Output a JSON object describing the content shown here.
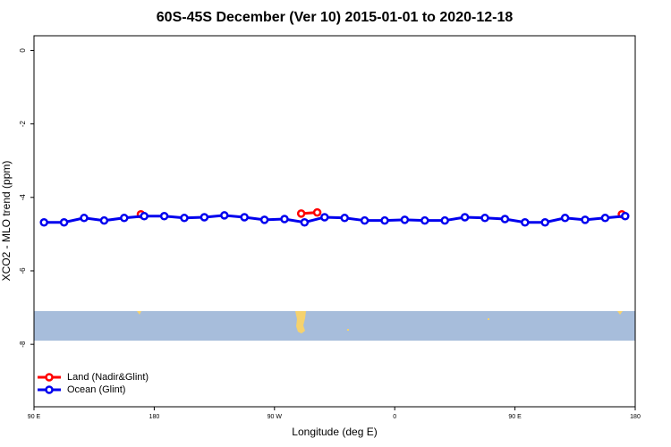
{
  "chart_data": {
    "type": "line",
    "title": "60S-45S December (Ver 10)   2015-01-01 to 2020-12-18",
    "x_label": "Longitude (deg E)",
    "y_label": "XCO2 - MLO trend (ppm)",
    "xlim": [
      90,
      540
    ],
    "xticks": [
      {
        "value": 90,
        "label": "90 E"
      },
      {
        "value": 180,
        "label": "180"
      },
      {
        "value": 270,
        "label": "90 W"
      },
      {
        "value": 360,
        "label": "0"
      },
      {
        "value": 450,
        "label": "90 E"
      },
      {
        "value": 540,
        "label": "180"
      }
    ],
    "ylim": [
      -9.7,
      0.4
    ],
    "yticks": [
      0,
      -2,
      -4,
      -6,
      -8
    ],
    "legend": "bottom-left",
    "series": [
      {
        "name": "Land (Nadir&Glint)",
        "color": "#ff0000",
        "x": [
          170,
          230,
          290,
          302,
          420,
          530
        ],
        "values": [
          -4.46,
          null,
          -4.44,
          -4.41,
          null,
          -4.46
        ]
      },
      {
        "name": "Ocean (Glint)",
        "color": "#0000ee",
        "x": [
          97.5,
          112.5,
          127.5,
          142.5,
          157.5,
          172.5,
          187.5,
          202.5,
          217.5,
          232.5,
          247.5,
          262.5,
          277.5,
          292.5,
          307.5,
          322.5,
          337.5,
          352.5,
          367.5,
          382.5,
          397.5,
          412.5,
          427.5,
          442.5,
          457.5,
          472.5,
          487.5,
          502.5,
          517.5,
          532.5
        ],
        "values": [
          -4.68,
          -4.68,
          -4.56,
          -4.63,
          -4.56,
          -4.51,
          -4.51,
          -4.56,
          -4.54,
          -4.49,
          -4.54,
          -4.61,
          -4.59,
          -4.68,
          -4.54,
          -4.56,
          -4.63,
          -4.63,
          -4.61,
          -4.63,
          -4.63,
          -4.54,
          -4.56,
          -4.59,
          -4.68,
          -4.68,
          -4.56,
          -4.61,
          -4.56,
          -4.51
        ]
      }
    ]
  }
}
